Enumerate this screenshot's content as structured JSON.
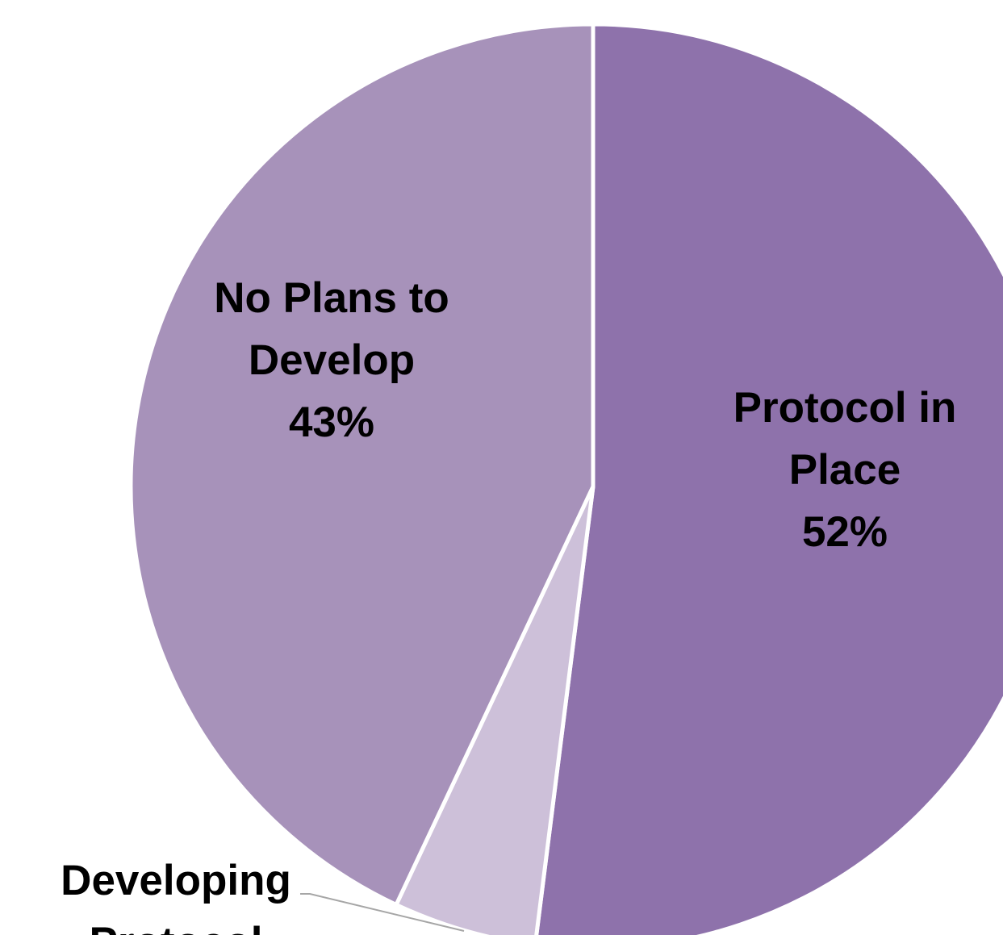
{
  "chart_data": {
    "type": "pie",
    "start_angle_deg": 0,
    "direction": "clockwise",
    "slices": [
      {
        "id": "protocol-in-place",
        "category": "Protocol in Place",
        "label_lines": [
          "Protocol in",
          "Place"
        ],
        "value": 52,
        "value_label": "52%",
        "color": "#8e72ab"
      },
      {
        "id": "developing-protocol",
        "category": "Developing Protocol",
        "label_lines": [
          "Developing",
          "Protocol"
        ],
        "value": 5,
        "value_label": "",
        "color": "#cdc0d9"
      },
      {
        "id": "no-plans-to-develop",
        "category": "No Plans to Develop",
        "label_lines": [
          "No Plans to",
          "Develop"
        ],
        "value": 43,
        "value_label": "43%",
        "color": "#a792ba"
      }
    ],
    "slice_border_color": "#ffffff",
    "leader_line_color": "#a6a6a6",
    "legend": "none",
    "title": ""
  }
}
